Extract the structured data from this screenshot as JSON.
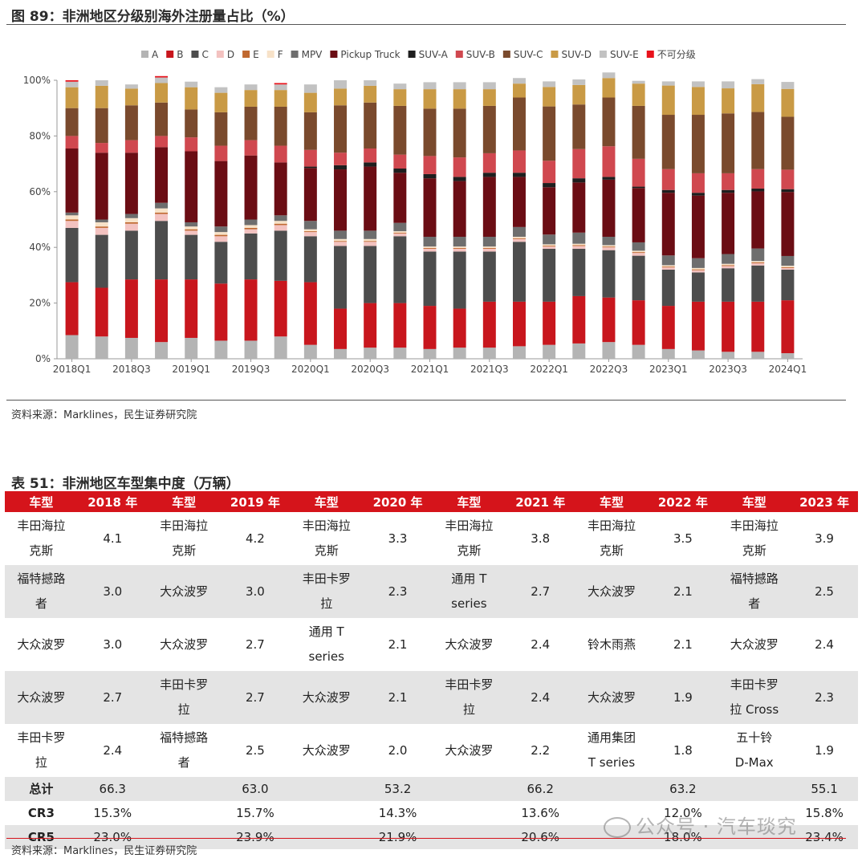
{
  "figure": {
    "title": "图 89：非洲地区分级别海外注册量占比（%）",
    "source": "资料来源：Marklines，民生证券研究院"
  },
  "chart_data": {
    "type": "bar",
    "stacked": true,
    "categories": [
      "2018Q1",
      "2018Q2",
      "2018Q3",
      "2018Q4",
      "2019Q1",
      "2019Q2",
      "2019Q3",
      "2019Q4",
      "2020Q1",
      "2020Q2",
      "2020Q3",
      "2020Q4",
      "2021Q1",
      "2021Q2",
      "2021Q3",
      "2021Q4",
      "2022Q1",
      "2022Q2",
      "2022Q3",
      "2022Q4",
      "2023Q1",
      "2023Q2",
      "2023Q3",
      "2023Q4",
      "2024Q1"
    ],
    "tick_labels": [
      "2018Q1",
      "2018Q3",
      "2019Q1",
      "2019Q3",
      "2020Q1",
      "2020Q3",
      "2021Q1",
      "2021Q3",
      "2022Q1",
      "2022Q3",
      "2023Q1",
      "2023Q3",
      "2024Q1"
    ],
    "y_ticks": [
      "0%",
      "20%",
      "40%",
      "60%",
      "80%",
      "100%"
    ],
    "ylim": [
      0,
      100
    ],
    "legend_position": "top",
    "series": [
      {
        "name": "A",
        "color": "#b4b4b4",
        "values": [
          8.5,
          8,
          7.5,
          6,
          7.5,
          6.5,
          6.5,
          8,
          5,
          3.5,
          4,
          4,
          3.5,
          4,
          4,
          4.5,
          5,
          5.5,
          6,
          5,
          3.5,
          3,
          2.5,
          2.5,
          2
        ]
      },
      {
        "name": "B",
        "color": "#c8161d",
        "values": [
          19,
          17.5,
          21,
          22.5,
          21,
          20.5,
          22,
          20,
          22.5,
          14.5,
          16,
          16,
          15.5,
          14,
          16.5,
          16,
          15.5,
          17,
          16,
          16,
          15.5,
          17.5,
          18,
          18,
          19
        ]
      },
      {
        "name": "C",
        "color": "#4d4d4d",
        "values": [
          19.5,
          19,
          17.5,
          21,
          16,
          15,
          16.5,
          18,
          16.5,
          22.5,
          20.5,
          24,
          19.5,
          20.5,
          18,
          21.5,
          19,
          17,
          17,
          16,
          13,
          10.5,
          12,
          13,
          11
        ]
      },
      {
        "name": "D",
        "color": "#f3c2c0",
        "values": [
          2.5,
          2.5,
          2.5,
          2.5,
          1.5,
          2,
          1.5,
          2,
          1.5,
          1.5,
          1.5,
          1,
          1,
          1,
          1,
          1,
          0.8,
          1,
          1,
          1,
          0.8,
          0.8,
          0.8,
          0.8,
          0.6
        ]
      },
      {
        "name": "E",
        "color": "#c0682f",
        "values": [
          0.5,
          0.5,
          0.5,
          0.5,
          0.5,
          0.5,
          0.5,
          0.5,
          0.3,
          0.3,
          0.3,
          0.3,
          0.3,
          0.3,
          0.3,
          0.3,
          0.3,
          0.3,
          0.3,
          0.3,
          0.3,
          0.3,
          0.3,
          0.3,
          0.3
        ]
      },
      {
        "name": "F",
        "color": "#f7e2c8",
        "values": [
          1.5,
          1.5,
          1.5,
          1.5,
          1,
          1,
          1,
          1,
          0.7,
          0.7,
          0.7,
          0.5,
          0.5,
          0.5,
          0.5,
          0.5,
          0.5,
          0.5,
          0.5,
          0.5,
          0.5,
          0.5,
          0.5,
          0.5,
          0.5
        ]
      },
      {
        "name": "MPV",
        "color": "#6e6e6e",
        "values": [
          1,
          1,
          1.5,
          2,
          1.5,
          2,
          2,
          2,
          3,
          3,
          3,
          3,
          3.5,
          3.5,
          3.5,
          3.5,
          3.5,
          4,
          3,
          3,
          3.5,
          3.5,
          3.5,
          4.5,
          3.5
        ]
      },
      {
        "name": "Pickup Truck",
        "color": "#6b0d14",
        "values": [
          23,
          24,
          22,
          20,
          25.5,
          23.5,
          23,
          19,
          19,
          22,
          23,
          18,
          21,
          20,
          21.5,
          18,
          17,
          18,
          20.5,
          19.5,
          22.5,
          22.5,
          22,
          20.5,
          23
        ]
      },
      {
        "name": "SUV-A",
        "color": "#1e1e1e",
        "values": [
          0,
          0,
          0,
          0,
          0,
          0,
          0,
          0,
          0.5,
          1.5,
          1.5,
          1.5,
          1.5,
          1.5,
          1.5,
          1.5,
          1.5,
          1.5,
          1,
          0.5,
          1,
          1,
          1,
          1,
          1
        ]
      },
      {
        "name": "SUV-B",
        "color": "#d0484f",
        "values": [
          4.5,
          3.5,
          4.5,
          4,
          5,
          5.5,
          5.5,
          6,
          6,
          4.5,
          5,
          5,
          6.5,
          7,
          7,
          8,
          8,
          10.5,
          11,
          10,
          7.5,
          7,
          6,
          7,
          7
        ]
      },
      {
        "name": "SUV-C",
        "color": "#7a4a2d",
        "values": [
          10,
          12.5,
          12.5,
          12,
          10,
          12,
          12,
          14,
          13.5,
          17,
          16.5,
          17.5,
          17,
          17.5,
          17,
          19,
          19.5,
          16,
          17.5,
          19,
          19.5,
          21,
          21.5,
          20.5,
          19
        ]
      },
      {
        "name": "SUV-D",
        "color": "#c99a45",
        "values": [
          7.5,
          8,
          6,
          7,
          8,
          7,
          6,
          6,
          7,
          6,
          6,
          6,
          7,
          7,
          6,
          5,
          7,
          7,
          7,
          8,
          10.5,
          10,
          9,
          10,
          10
        ]
      },
      {
        "name": "SUV-E",
        "color": "#c2c2c2",
        "values": [
          2,
          2,
          1.5,
          2,
          2,
          2,
          2,
          2,
          3,
          3,
          2,
          2,
          2.5,
          2.5,
          2.5,
          2,
          2,
          2,
          2,
          1,
          1.5,
          2,
          2.5,
          1.8,
          2.5
        ]
      },
      {
        "name": "不可分级",
        "color": "#e8121b",
        "values": [
          0.5,
          0,
          0,
          0.5,
          0,
          0,
          0,
          0.5,
          0,
          0,
          0,
          0,
          0,
          0,
          0,
          0,
          0,
          0,
          0,
          0,
          0,
          0,
          0,
          0,
          0
        ]
      }
    ]
  },
  "table": {
    "title": "表 51：非洲地区车型集中度（万辆）",
    "headers": [
      "车型",
      "2018 年",
      "车型",
      "2019 年",
      "车型",
      "2020 年",
      "车型",
      "2021 年",
      "车型",
      "2022 年",
      "车型",
      "2023 年"
    ],
    "rows": [
      [
        [
          "丰田海拉",
          "克斯"
        ],
        "4.1",
        [
          "丰田海拉",
          "克斯"
        ],
        "4.2",
        [
          "丰田海拉",
          "克斯"
        ],
        "3.3",
        [
          "丰田海拉",
          "克斯"
        ],
        "3.8",
        [
          "丰田海拉",
          "克斯"
        ],
        "3.5",
        [
          "丰田海拉",
          "克斯"
        ],
        "3.9"
      ],
      [
        [
          "福特撼路",
          "者"
        ],
        "3.0",
        [
          "大众波罗"
        ],
        "3.0",
        [
          "丰田卡罗",
          "拉"
        ],
        "2.3",
        [
          "通用 T",
          "series"
        ],
        "2.7",
        [
          "大众波罗"
        ],
        "2.1",
        [
          "福特撼路",
          "者"
        ],
        "2.5"
      ],
      [
        [
          "大众波罗"
        ],
        "3.0",
        [
          "大众波罗"
        ],
        "2.7",
        [
          "通用 T",
          "series"
        ],
        "2.1",
        [
          "大众波罗"
        ],
        "2.4",
        [
          "铃木雨燕"
        ],
        "2.1",
        [
          "大众波罗"
        ],
        "2.4"
      ],
      [
        [
          "大众波罗"
        ],
        "2.7",
        [
          "丰田卡罗",
          "拉"
        ],
        "2.7",
        [
          "大众波罗"
        ],
        "2.1",
        [
          "丰田卡罗",
          "拉"
        ],
        "2.4",
        [
          "大众波罗"
        ],
        "1.9",
        [
          "丰田卡罗",
          "拉 Cross"
        ],
        "2.3"
      ],
      [
        [
          "丰田卡罗",
          "拉"
        ],
        "2.4",
        [
          "福特撼路",
          "者"
        ],
        "2.5",
        [
          "大众波罗"
        ],
        "2.0",
        [
          "大众波罗"
        ],
        "2.2",
        [
          "通用集团",
          "T series"
        ],
        "1.8",
        [
          "五十铃",
          "D-Max"
        ],
        "1.9"
      ]
    ],
    "summary": [
      {
        "label": "总计",
        "values": [
          "66.3",
          "63.0",
          "53.2",
          "66.2",
          "63.2",
          "55.1"
        ]
      },
      {
        "label": "CR3",
        "values": [
          "15.3%",
          "15.7%",
          "14.3%",
          "13.6%",
          "12.0%",
          "15.8%"
        ]
      },
      {
        "label": "CR5",
        "values": [
          "23.0%",
          "23.9%",
          "21.9%",
          "20.6%",
          "18.0%",
          "23.4%"
        ]
      }
    ],
    "source": "资料来源：Marklines，民生证券研究院"
  },
  "watermark": "公众号 · 汽车琰究"
}
